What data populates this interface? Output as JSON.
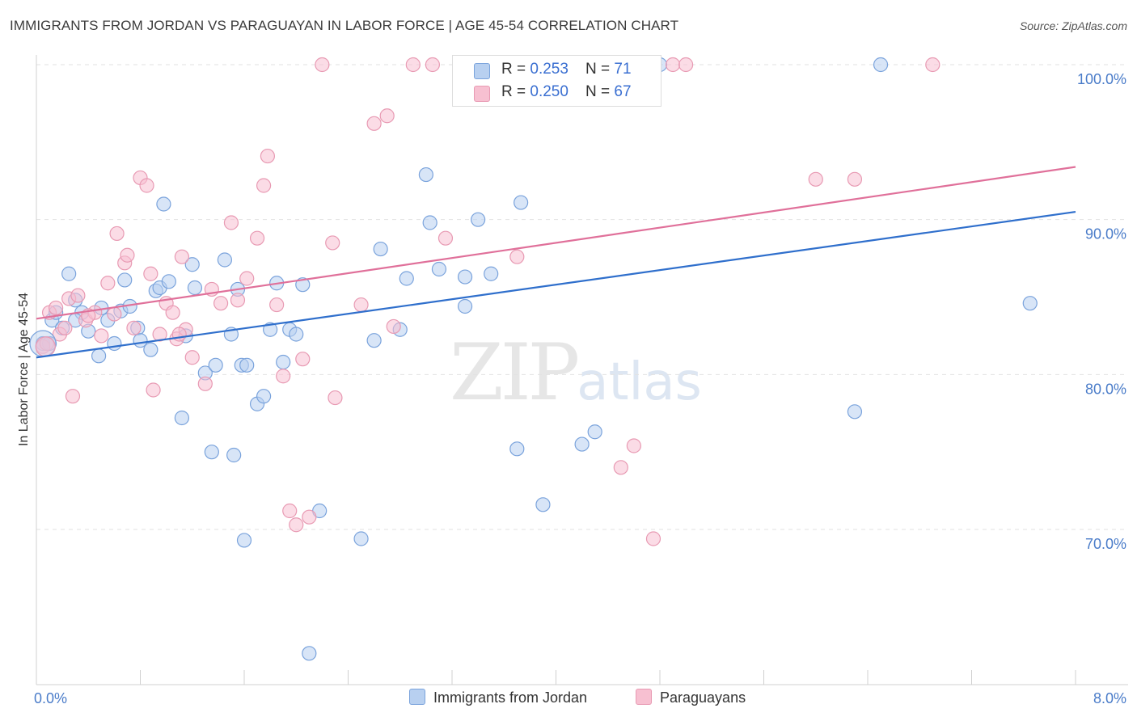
{
  "title": "IMMIGRANTS FROM JORDAN VS PARAGUAYAN IN LABOR FORCE | AGE 45-54 CORRELATION CHART",
  "source": "Source: ZipAtlas.com",
  "watermark": {
    "zip": "ZIP",
    "atlas": "atlas"
  },
  "legend": {
    "rows": [
      {
        "r_label": "R = ",
        "r_value": "0.253",
        "n_label": "N = ",
        "n_value": "71"
      },
      {
        "r_label": "R = ",
        "r_value": "0.250",
        "n_label": "N = ",
        "n_value": "67"
      }
    ]
  },
  "colors": {
    "jordan_fill": "#b8d0f0",
    "jordan_stroke": "#7aa3dc",
    "jordan_line": "#2f6fcc",
    "paraguay_fill": "#f7c0d1",
    "paraguay_stroke": "#e89ab3",
    "paraguay_line": "#e0709a",
    "tick": "#4a7cc9",
    "grid": "#e2e2e2"
  },
  "chart_data": {
    "type": "scatter",
    "title": "IMMIGRANTS FROM JORDAN VS PARAGUAYAN IN LABOR FORCE | AGE 45-54 CORRELATION CHART",
    "xlabel": "",
    "ylabel": "In Labor Force | Age 45-54",
    "xlim": [
      0,
      8
    ],
    "ylim": [
      60,
      101
    ],
    "x_tick_labels": [
      "0.0%",
      "8.0%"
    ],
    "y_ticks": [
      70,
      80,
      90,
      100
    ],
    "y_tick_labels": [
      "70.0%",
      "80.0%",
      "90.0%",
      "100.0%"
    ],
    "grid": true,
    "legend_position": "top-center",
    "series": [
      {
        "name": "Immigrants from Jordan",
        "trend": [
          [
            0,
            81.1
          ],
          [
            8,
            90.5
          ]
        ],
        "points": [
          [
            0.05,
            82.0
          ],
          [
            0.12,
            83.5
          ],
          [
            0.15,
            84.0
          ],
          [
            0.2,
            83.0
          ],
          [
            0.25,
            86.5
          ],
          [
            0.3,
            84.8
          ],
          [
            0.35,
            84.0
          ],
          [
            0.4,
            82.8
          ],
          [
            0.48,
            81.2
          ],
          [
            0.5,
            84.3
          ],
          [
            0.55,
            83.5
          ],
          [
            0.6,
            82.0
          ],
          [
            0.65,
            84.1
          ],
          [
            0.68,
            86.1
          ],
          [
            0.72,
            84.4
          ],
          [
            0.78,
            83.0
          ],
          [
            0.8,
            82.2
          ],
          [
            0.88,
            81.6
          ],
          [
            0.92,
            85.4
          ],
          [
            0.95,
            85.6
          ],
          [
            0.98,
            91.0
          ],
          [
            1.02,
            86.0
          ],
          [
            1.12,
            77.2
          ],
          [
            1.15,
            82.5
          ],
          [
            1.2,
            87.1
          ],
          [
            1.22,
            85.6
          ],
          [
            1.3,
            80.1
          ],
          [
            1.35,
            75.0
          ],
          [
            1.38,
            80.6
          ],
          [
            1.45,
            87.4
          ],
          [
            1.5,
            82.6
          ],
          [
            1.52,
            74.8
          ],
          [
            1.58,
            80.6
          ],
          [
            1.6,
            69.3
          ],
          [
            1.62,
            80.6
          ],
          [
            1.7,
            78.1
          ],
          [
            1.75,
            78.6
          ],
          [
            1.8,
            82.9
          ],
          [
            1.85,
            85.9
          ],
          [
            1.9,
            80.8
          ],
          [
            1.95,
            82.9
          ],
          [
            2.0,
            82.6
          ],
          [
            2.05,
            85.8
          ],
          [
            2.1,
            62.0
          ],
          [
            2.18,
            71.2
          ],
          [
            2.5,
            69.4
          ],
          [
            2.6,
            82.2
          ],
          [
            2.65,
            88.1
          ],
          [
            2.8,
            82.9
          ],
          [
            2.85,
            86.2
          ],
          [
            3.0,
            92.9
          ],
          [
            3.03,
            89.8
          ],
          [
            3.1,
            86.8
          ],
          [
            3.3,
            86.3
          ],
          [
            3.3,
            84.4
          ],
          [
            3.4,
            90.0
          ],
          [
            3.5,
            86.5
          ],
          [
            3.6,
            100.0
          ],
          [
            3.7,
            75.2
          ],
          [
            3.73,
            91.1
          ],
          [
            3.9,
            71.6
          ],
          [
            4.2,
            75.5
          ],
          [
            4.3,
            76.3
          ],
          [
            4.5,
            100.0
          ],
          [
            4.8,
            100.0
          ],
          [
            6.3,
            77.6
          ],
          [
            6.5,
            100.0
          ],
          [
            7.65,
            84.6
          ],
          [
            0.1,
            82.0
          ],
          [
            0.3,
            83.5
          ],
          [
            1.55,
            85.5
          ]
        ]
      },
      {
        "name": "Paraguayans",
        "trend": [
          [
            0,
            83.6
          ],
          [
            8,
            93.4
          ]
        ],
        "points": [
          [
            0.05,
            81.8
          ],
          [
            0.1,
            84.0
          ],
          [
            0.15,
            84.3
          ],
          [
            0.18,
            82.6
          ],
          [
            0.22,
            83.0
          ],
          [
            0.25,
            84.9
          ],
          [
            0.28,
            78.6
          ],
          [
            0.32,
            85.1
          ],
          [
            0.38,
            83.5
          ],
          [
            0.45,
            84.0
          ],
          [
            0.5,
            82.5
          ],
          [
            0.55,
            85.9
          ],
          [
            0.6,
            83.9
          ],
          [
            0.62,
            89.1
          ],
          [
            0.68,
            87.2
          ],
          [
            0.7,
            87.7
          ],
          [
            0.75,
            83.0
          ],
          [
            0.8,
            92.7
          ],
          [
            0.85,
            92.2
          ],
          [
            0.88,
            86.5
          ],
          [
            0.9,
            79.0
          ],
          [
            0.95,
            82.6
          ],
          [
            1.0,
            84.6
          ],
          [
            1.05,
            84.0
          ],
          [
            1.08,
            82.3
          ],
          [
            1.12,
            87.6
          ],
          [
            1.15,
            82.9
          ],
          [
            1.2,
            81.1
          ],
          [
            1.3,
            79.4
          ],
          [
            1.35,
            85.5
          ],
          [
            1.42,
            84.6
          ],
          [
            1.5,
            89.8
          ],
          [
            1.55,
            84.8
          ],
          [
            1.62,
            86.2
          ],
          [
            1.7,
            88.8
          ],
          [
            1.75,
            92.2
          ],
          [
            1.78,
            94.1
          ],
          [
            1.85,
            84.5
          ],
          [
            1.9,
            79.9
          ],
          [
            1.95,
            71.2
          ],
          [
            2.0,
            70.3
          ],
          [
            2.05,
            81.0
          ],
          [
            2.1,
            70.8
          ],
          [
            2.2,
            100.0
          ],
          [
            2.28,
            88.5
          ],
          [
            2.3,
            78.5
          ],
          [
            2.5,
            84.5
          ],
          [
            2.6,
            96.2
          ],
          [
            2.7,
            96.7
          ],
          [
            2.75,
            83.1
          ],
          [
            2.9,
            100.0
          ],
          [
            3.05,
            100.0
          ],
          [
            3.15,
            88.8
          ],
          [
            3.4,
            100.0
          ],
          [
            3.7,
            87.6
          ],
          [
            4.0,
            100.0
          ],
          [
            4.5,
            74.0
          ],
          [
            4.6,
            75.4
          ],
          [
            4.75,
            69.4
          ],
          [
            4.9,
            100.0
          ],
          [
            5.0,
            100.0
          ],
          [
            6.0,
            92.6
          ],
          [
            6.3,
            92.6
          ],
          [
            6.9,
            100.0
          ],
          [
            0.08,
            82.0
          ],
          [
            1.1,
            82.6
          ],
          [
            0.4,
            83.8
          ]
        ]
      }
    ]
  },
  "bottom_legend": [
    {
      "name": "Immigrants from Jordan"
    },
    {
      "name": "Paraguayans"
    }
  ]
}
